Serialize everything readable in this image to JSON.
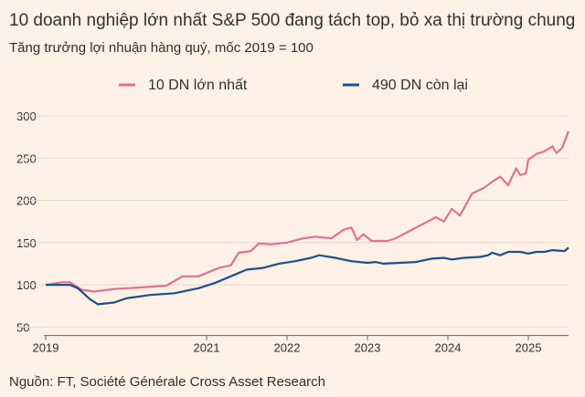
{
  "chart_data": {
    "type": "line",
    "title": "10 doanh nghiệp lớn nhất S&P 500 đang tách top, bỏ xa thị trường chung",
    "subtitle": "Tăng trưởng lợi nhuận hàng quý, mốc 2019 = 100",
    "source": "Nguồn: FT, Société Générale Cross Asset Research",
    "series": [
      {
        "name": "10 DN lớn nhất",
        "color": "#e0738c",
        "x": [
          2019.0,
          2019.2,
          2019.3,
          2019.45,
          2019.6,
          2019.85,
          2020.2,
          2020.5,
          2020.7,
          2020.9,
          2021.15,
          2021.3,
          2021.4,
          2021.55,
          2021.65,
          2021.8,
          2022.0,
          2022.2,
          2022.35,
          2022.55,
          2022.7,
          2022.8,
          2022.87,
          2022.95,
          2023.05,
          2023.25,
          2023.35,
          2023.55,
          2023.75,
          2023.85,
          2023.95,
          2024.05,
          2024.15,
          2024.3,
          2024.45,
          2024.55,
          2024.65,
          2024.75,
          2024.85,
          2024.9,
          2024.97,
          2025.0,
          2025.1,
          2025.2,
          2025.3,
          2025.35,
          2025.42,
          2025.5
        ],
        "values": [
          100,
          103,
          103,
          94,
          92,
          95,
          97,
          99,
          110,
          110,
          120,
          123,
          138,
          140,
          149,
          148,
          150,
          155,
          157,
          155,
          165,
          168,
          153,
          160,
          152,
          152,
          155,
          165,
          175,
          180,
          175,
          190,
          182,
          208,
          215,
          222,
          228,
          218,
          238,
          230,
          232,
          248,
          255,
          258,
          264,
          256,
          262,
          282
        ]
      },
      {
        "name": "490 DN còn lại",
        "color": "#1d4f8f",
        "x": [
          2019.0,
          2019.3,
          2019.4,
          2019.55,
          2019.65,
          2019.85,
          2020.0,
          2020.3,
          2020.6,
          2020.9,
          2021.1,
          2021.3,
          2021.5,
          2021.7,
          2021.9,
          2022.1,
          2022.3,
          2022.4,
          2022.6,
          2022.8,
          2023.0,
          2023.1,
          2023.2,
          2023.4,
          2023.6,
          2023.8,
          2023.95,
          2024.05,
          2024.2,
          2024.4,
          2024.5,
          2024.55,
          2024.65,
          2024.75,
          2024.9,
          2025.0,
          2025.1,
          2025.2,
          2025.3,
          2025.45,
          2025.5
        ],
        "values": [
          100,
          100,
          96,
          83,
          77,
          79,
          84,
          88,
          90,
          96,
          102,
          110,
          118,
          120,
          125,
          128,
          132,
          135,
          132,
          128,
          126,
          127,
          125,
          126,
          127,
          131,
          132,
          130,
          132,
          133,
          135,
          138,
          135,
          139,
          139,
          137,
          139,
          139,
          141,
          140,
          144
        ]
      }
    ],
    "xlim": [
      2019,
      2025.5
    ],
    "xticks": [
      2019,
      2021,
      2022,
      2023,
      2024,
      2025
    ],
    "ylim": [
      40,
      300
    ],
    "yticks": [
      50,
      100,
      150,
      200,
      250,
      300
    ],
    "grid": true
  }
}
